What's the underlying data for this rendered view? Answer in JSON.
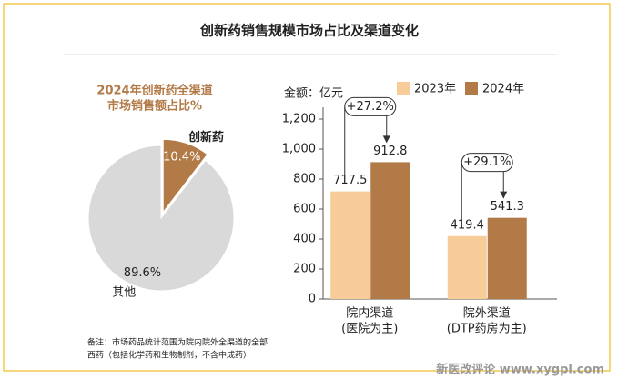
{
  "title": "创新药销售规模市场占比及渠道变化",
  "chart_data": [
    {
      "type": "pie",
      "title": [
        "2024年创新药全渠道",
        "市场销售额占比%"
      ],
      "categories": [
        "创新药",
        "其他"
      ],
      "values": [
        10.4,
        89.6
      ],
      "value_labels": [
        "10.4%",
        "89.6%"
      ],
      "colors": [
        "#b27a46",
        "#d9d9d9"
      ]
    },
    {
      "type": "bar",
      "y_label": "金额：亿元",
      "categories": [
        [
          "院内渠道",
          "(医院为主)"
        ],
        [
          "院外渠道",
          "(DTP药房为主)"
        ]
      ],
      "series": [
        {
          "name": "2023年",
          "color": "#f7cc99",
          "values": [
            717.5,
            419.4
          ]
        },
        {
          "name": "2024年",
          "color": "#b27a46",
          "values": [
            912.8,
            541.3
          ]
        }
      ],
      "annotations": [
        "+27.2%",
        "+29.1%"
      ],
      "ylim": [
        0,
        1200
      ],
      "yticks": [
        0,
        200,
        400,
        600,
        800,
        {
          "value": 1000,
          "label": "1,000"
        },
        {
          "value": 1200,
          "label": "1,200"
        }
      ]
    }
  ],
  "note": [
    "备注：市场药品统计范围为院内院外全渠道的全部",
    "西药（包括化学药和生物制剂，不含中成药）"
  ],
  "watermark": "新医改评论 www.xygpl.com"
}
